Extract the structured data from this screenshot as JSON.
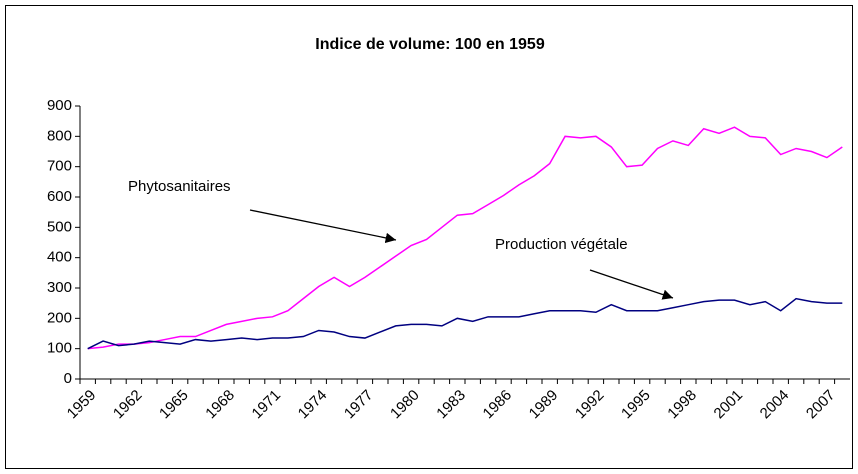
{
  "chart_data": {
    "type": "line",
    "title": "Indice de volume: 100 en 1959",
    "categories": [
      "1959",
      null,
      null,
      "1962",
      null,
      null,
      "1965",
      null,
      null,
      "1968",
      null,
      null,
      "1971",
      null,
      null,
      "1974",
      null,
      null,
      "1977",
      null,
      null,
      "1980",
      null,
      null,
      "1983",
      null,
      null,
      "1986",
      null,
      null,
      "1989",
      null,
      null,
      "1992",
      null,
      null,
      "1995",
      null,
      null,
      "1998",
      null,
      null,
      "2001",
      null,
      null,
      "2004",
      null,
      null,
      "2007",
      null
    ],
    "series": [
      {
        "name": "Phytosanitaires",
        "color": "#ff00ff",
        "values": [
          100,
          105,
          115,
          115,
          120,
          130,
          140,
          140,
          160,
          180,
          190,
          200,
          205,
          225,
          265,
          305,
          335,
          305,
          335,
          370,
          405,
          440,
          460,
          500,
          540,
          545,
          575,
          605,
          640,
          670,
          710,
          800,
          795,
          800,
          765,
          700,
          705,
          760,
          785,
          770,
          825,
          810,
          830,
          800,
          795,
          740,
          760,
          750,
          730,
          765
        ]
      },
      {
        "name": "Production végétale",
        "color": "#000080",
        "values": [
          100,
          125,
          110,
          115,
          125,
          120,
          115,
          130,
          125,
          130,
          135,
          130,
          135,
          135,
          140,
          160,
          155,
          140,
          135,
          155,
          175,
          180,
          180,
          175,
          200,
          190,
          205,
          205,
          205,
          215,
          225,
          225,
          225,
          220,
          245,
          225,
          225,
          225,
          235,
          245,
          255,
          260,
          260,
          245,
          255,
          225,
          265,
          255,
          250,
          250
        ]
      }
    ],
    "ylim": [
      0,
      900
    ],
    "yticks": [
      0,
      100,
      200,
      300,
      400,
      500,
      600,
      700,
      800,
      900
    ]
  }
}
